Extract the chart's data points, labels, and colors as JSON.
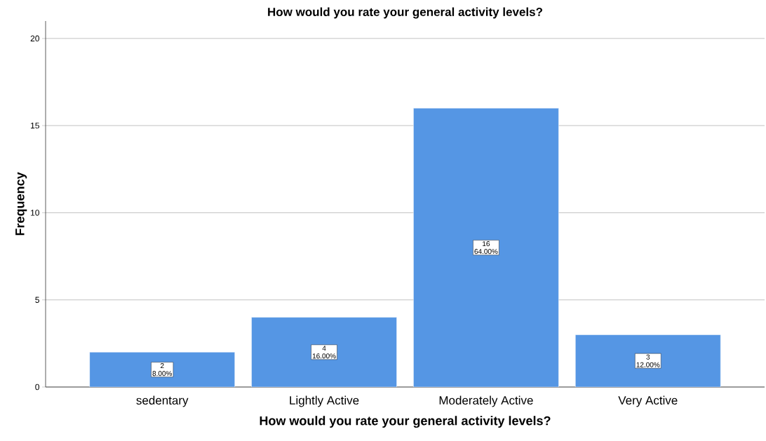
{
  "chart_data": {
    "type": "bar",
    "title": "How would you rate your general activity levels?",
    "xlabel": "How would you rate your general activity levels?",
    "ylabel": "Frequency",
    "categories": [
      "sedentary",
      "Lightly Active",
      "Moderately Active",
      "Very Active"
    ],
    "values": [
      2,
      4,
      16,
      3
    ],
    "value_labels": [
      "2 8.00%",
      "4 16.00%",
      "16 64.00%",
      "3 12.00%"
    ],
    "color": "#5596e4",
    "ylim": [
      0,
      21
    ],
    "yticks": [
      0,
      5,
      10,
      15,
      20
    ],
    "grid": "y"
  }
}
